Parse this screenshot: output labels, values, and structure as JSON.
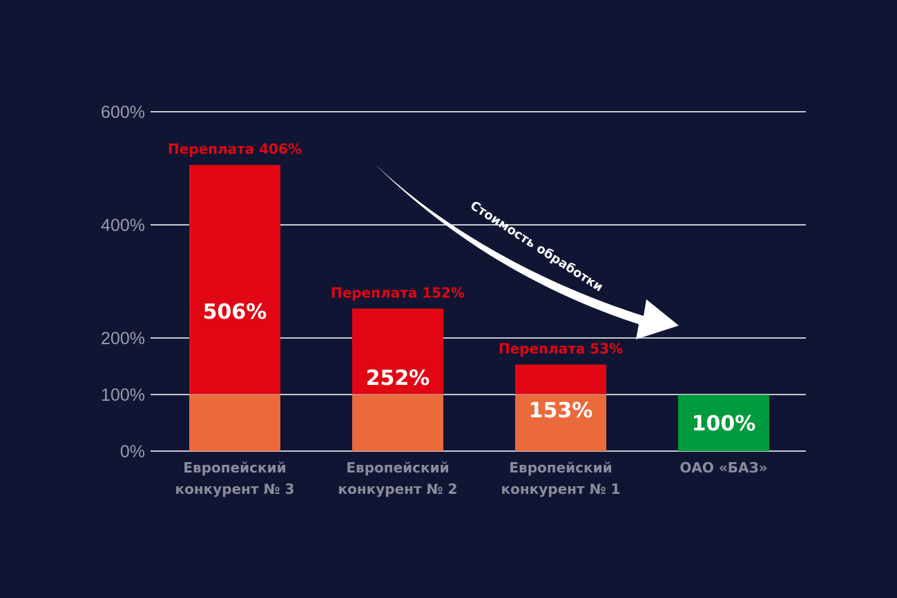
{
  "chart_data": {
    "type": "bar",
    "title": "",
    "xlabel": "",
    "ylabel": "",
    "ylim": [
      0,
      600
    ],
    "yticks": [
      {
        "value": 0,
        "label": "0%"
      },
      {
        "value": 100,
        "label": "100%"
      },
      {
        "value": 200,
        "label": "200%"
      },
      {
        "value": 400,
        "label": "400%"
      },
      {
        "value": 600,
        "label": "600%"
      }
    ],
    "grid": true,
    "categories": [
      [
        "Европейский",
        "конкурент № 3"
      ],
      [
        "Европейский",
        "конкурент № 2"
      ],
      [
        "Европейский",
        "конкурент № 1"
      ],
      [
        "ОАО «БАЗ»"
      ]
    ],
    "values": [
      506,
      252,
      153,
      100
    ],
    "value_labels": [
      "506%",
      "252%",
      "153%",
      "100%"
    ],
    "overpayment": [
      406,
      152,
      53,
      null
    ],
    "overpayment_labels": [
      "Переплата 406%",
      "Переплата 152%",
      "Переплата 53%",
      ""
    ],
    "annotation": "Стоимость обработки",
    "colors": {
      "background": "#111534",
      "overpayment": "#e10613",
      "base": "#eb6a3c",
      "baz": "#009a3e",
      "grid": "#c8c9d0",
      "tick_text": "#9a9cab",
      "category_text": "#8a8c9a",
      "overpayment_text": "#e10613",
      "value_text": "#ffffff",
      "arrow": "#ffffff"
    }
  }
}
